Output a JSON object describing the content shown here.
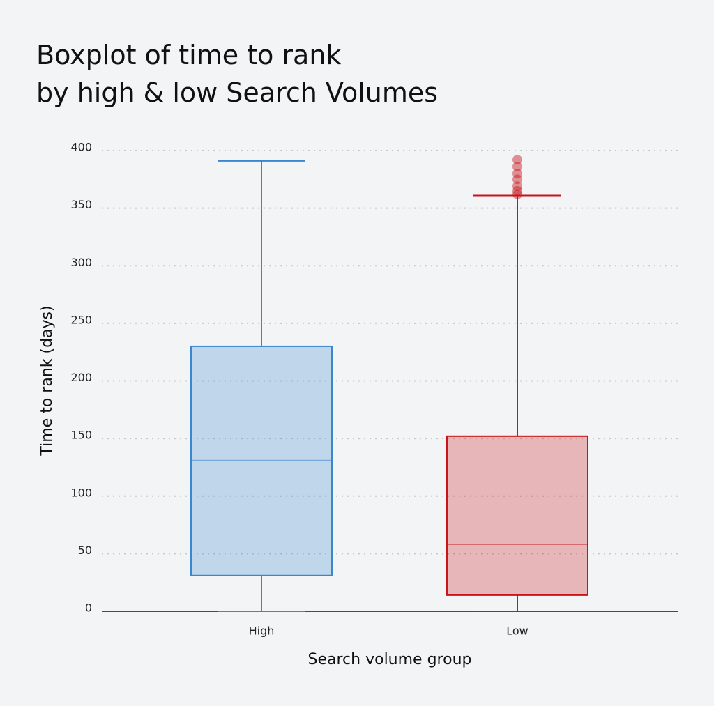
{
  "chart_data": {
    "type": "box",
    "title_lines": [
      "Boxplot of time to rank",
      "by high & low Search Volumes"
    ],
    "x_label": "Search volume group",
    "y_label": "Time to rank (days)",
    "categories": [
      "High",
      "Low"
    ],
    "colors": [
      "#3a87d0",
      "#c8141a"
    ],
    "whisker_low": [
      0,
      0
    ],
    "q1": [
      31,
      14
    ],
    "median": [
      131,
      58
    ],
    "q3": [
      230,
      152
    ],
    "whisker_high": [
      391,
      361
    ],
    "outliers": [
      [],
      [
        392,
        386,
        380,
        375,
        369,
        365,
        362
      ]
    ],
    "ylim": [
      0,
      400
    ],
    "yticks": [
      0,
      50,
      100,
      150,
      200,
      250,
      300,
      350,
      400
    ],
    "grid": true
  }
}
